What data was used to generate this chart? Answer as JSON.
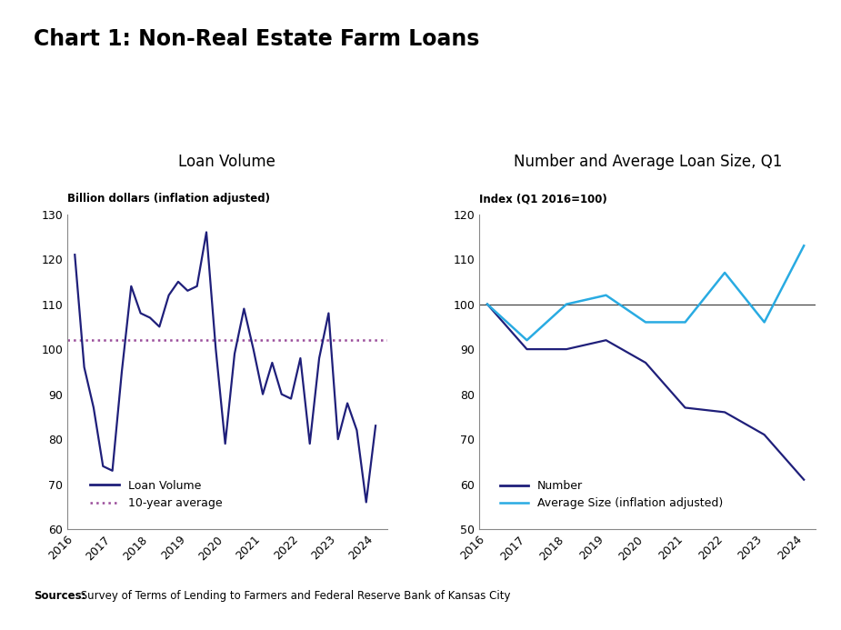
{
  "title": "Chart 1: Non-Real Estate Farm Loans",
  "subtitle_left": "Loan Volume",
  "subtitle_right": "Number and Average Loan Size, Q1",
  "ylabel_left": "Billion dollars (inflation adjusted)",
  "ylabel_right": "Index (Q1 2016=100)",
  "sources_bold": "Sources:",
  "sources_regular": " Survey of Terms of Lending to Farmers and Federal Reserve Bank of Kansas City",
  "loan_volume_x": [
    2016,
    2016.25,
    2016.5,
    2016.75,
    2017,
    2017.25,
    2017.5,
    2017.75,
    2018,
    2018.25,
    2018.5,
    2018.75,
    2019,
    2019.25,
    2019.5,
    2019.75,
    2020,
    2020.25,
    2020.5,
    2020.75,
    2021,
    2021.25,
    2021.5,
    2021.75,
    2022,
    2022.25,
    2022.5,
    2022.75,
    2023,
    2023.25,
    2023.5,
    2023.75,
    2024
  ],
  "loan_volume_y": [
    121,
    96,
    87,
    74,
    73,
    95,
    114,
    108,
    107,
    105,
    112,
    115,
    113,
    114,
    126,
    100,
    79,
    99,
    109,
    100,
    90,
    97,
    90,
    89,
    98,
    79,
    98,
    108,
    80,
    88,
    82,
    66,
    83
  ],
  "ten_year_avg": 102,
  "number_x": [
    2016,
    2017,
    2018,
    2019,
    2020,
    2021,
    2022,
    2023,
    2024
  ],
  "number_y": [
    100,
    90,
    90,
    92,
    87,
    77,
    76,
    71,
    61
  ],
  "avg_size_x": [
    2016,
    2017,
    2018,
    2019,
    2020,
    2021,
    2022,
    2023,
    2024
  ],
  "avg_size_y": [
    100,
    92,
    100,
    102,
    96,
    96,
    107,
    96,
    113
  ],
  "line_color_dark": "#1f1f7a",
  "line_color_cyan": "#29abe2",
  "avg_line_color": "#9b4d9b",
  "ref_line_color": "#444444",
  "ylim_left": [
    60,
    130
  ],
  "ylim_right": [
    50,
    120
  ],
  "yticks_left": [
    60,
    70,
    80,
    90,
    100,
    110,
    120,
    130
  ],
  "yticks_right": [
    50,
    60,
    70,
    80,
    90,
    100,
    110,
    120
  ],
  "xticks": [
    2016,
    2017,
    2018,
    2019,
    2020,
    2021,
    2022,
    2023,
    2024
  ],
  "background_color": "#ffffff"
}
